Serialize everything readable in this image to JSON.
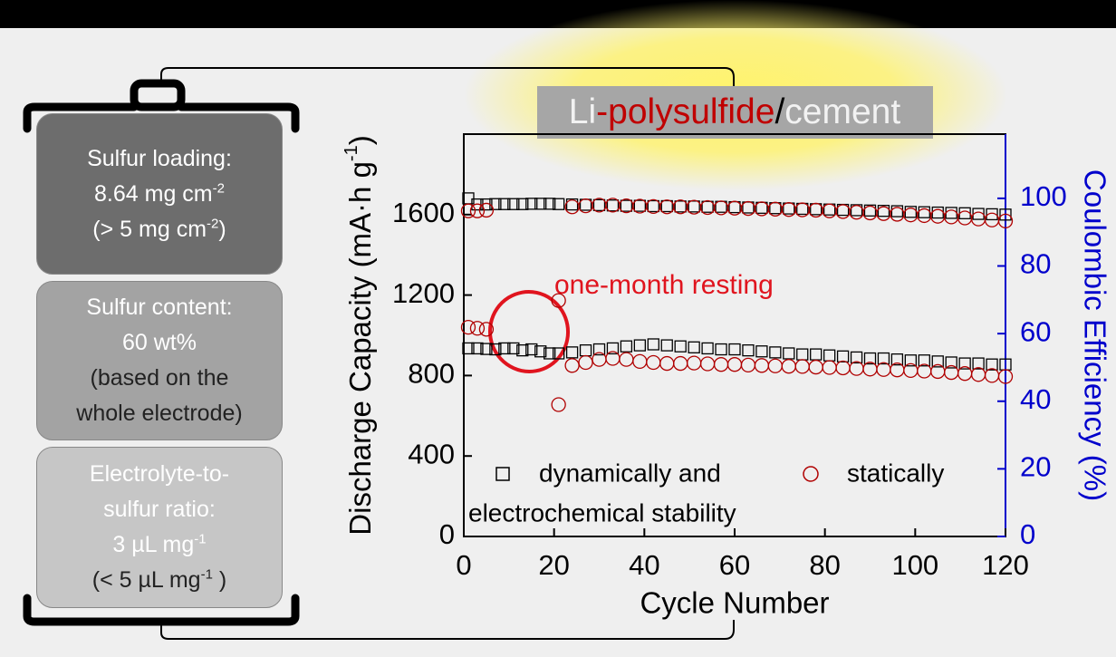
{
  "panel": {
    "boxes": [
      {
        "lines": [
          [
            "Sulfur loading:"
          ],
          [
            "8.64 mg cm",
            {
              "sup": "-2"
            }
          ],
          [
            "(> 5 mg cm",
            {
              "sup": "-2"
            },
            ")"
          ]
        ]
      },
      {
        "lines": [
          [
            "Sulfur content:"
          ],
          [
            "60 wt%"
          ],
          [
            "(based on the"
          ],
          [
            "whole electrode)"
          ]
        ]
      },
      {
        "lines": [
          [
            "Electrolyte-to-"
          ],
          [
            "sulfur ratio:"
          ],
          [
            "3 µL mg",
            {
              "sup": "-1"
            }
          ],
          [
            "(< 5 µL mg",
            {
              "sup": "-1"
            },
            " )"
          ]
        ]
      }
    ]
  },
  "chart_data": {
    "type": "scatter",
    "title": [
      {
        "text": "Li",
        "color": "#f2f2f2"
      },
      {
        "text": "-",
        "color": "#c00000"
      },
      {
        "text": "polysulfide",
        "color": "#c00000"
      },
      {
        "text": "/",
        "color": "#000000"
      },
      {
        "text": "cement",
        "color": "#f2f2f2"
      }
    ],
    "x_label": "Cycle Number",
    "y_label": [
      "Discharge Capacity (mA·h g",
      {
        "sup": "-1"
      },
      ")"
    ],
    "y2_label": "Coulombic Efficiency (%)",
    "y2_color": "#0000cc",
    "annotation": "one-month resting",
    "annotation_color": "#e0141e",
    "legend_note": "electrochemical stability",
    "xlim": [
      0,
      120
    ],
    "xticks": [
      0,
      20,
      40,
      60,
      80,
      100,
      120
    ],
    "ylim": [
      0,
      2000
    ],
    "yticks": [
      0,
      400,
      800,
      1200,
      1600
    ],
    "y2lim": [
      0,
      119
    ],
    "y2ticks": [
      0,
      20,
      40,
      60,
      80,
      100
    ],
    "x": [
      1,
      3,
      5,
      7,
      9,
      11,
      13,
      15,
      17,
      19,
      21,
      24,
      27,
      30,
      33,
      36,
      39,
      42,
      45,
      48,
      51,
      54,
      57,
      60,
      63,
      66,
      69,
      72,
      75,
      78,
      81,
      84,
      87,
      90,
      93,
      96,
      99,
      102,
      105,
      108,
      111,
      114,
      117,
      120
    ],
    "series": [
      {
        "name": "dynamically and",
        "marker": "square",
        "color": "#000000",
        "values": [
          935,
          935,
          932,
          930,
          935,
          935,
          925,
          930,
          920,
          910,
          910,
          915,
          925,
          930,
          935,
          945,
          950,
          955,
          950,
          945,
          940,
          935,
          930,
          930,
          925,
          920,
          915,
          910,
          905,
          905,
          900,
          895,
          890,
          885,
          885,
          880,
          875,
          875,
          870,
          865,
          860,
          860,
          855,
          855
        ]
      },
      {
        "name": "statically",
        "marker": "circle",
        "color": "#b00000",
        "values": [
          1040,
          1035,
          1030,
          null,
          null,
          null,
          null,
          null,
          null,
          null,
          1173,
          850,
          865,
          880,
          885,
          880,
          870,
          865,
          860,
          860,
          862,
          858,
          855,
          855,
          852,
          850,
          848,
          846,
          845,
          842,
          840,
          838,
          835,
          832,
          830,
          828,
          825,
          822,
          820,
          815,
          810,
          805,
          800,
          795
        ]
      },
      {
        "marker": "square",
        "color": "#000000",
        "axis": "y2",
        "values": [
          100,
          98.2,
          98.2,
          98.3,
          98.3,
          98.3,
          98.3,
          98.4,
          98.4,
          98.4,
          98.3,
          98.2,
          98.1,
          98,
          97.9,
          97.8,
          97.8,
          97.7,
          97.7,
          97.6,
          97.6,
          97.5,
          97.5,
          97.4,
          97.3,
          97.2,
          97.1,
          97,
          96.9,
          96.8,
          96.7,
          96.6,
          96.5,
          96.4,
          96.3,
          96.2,
          96,
          95.9,
          95.8,
          95.7,
          95.6,
          95.4,
          95.3,
          95.2
        ]
      },
      {
        "marker": "circle",
        "color": "#b00000",
        "axis": "y2",
        "values": [
          96.3,
          96.3,
          96.5,
          null,
          null,
          null,
          null,
          null,
          null,
          null,
          39,
          97.5,
          97.8,
          98,
          98,
          97.8,
          97.7,
          97.6,
          97.5,
          97.5,
          97.4,
          97.3,
          97.2,
          97.1,
          97,
          96.9,
          96.8,
          96.7,
          96.6,
          96.5,
          96.3,
          96.1,
          95.9,
          95.7,
          95.5,
          95.3,
          95.1,
          94.9,
          94.7,
          94.5,
          94.2,
          93.9,
          93.6,
          93.3
        ]
      }
    ]
  }
}
